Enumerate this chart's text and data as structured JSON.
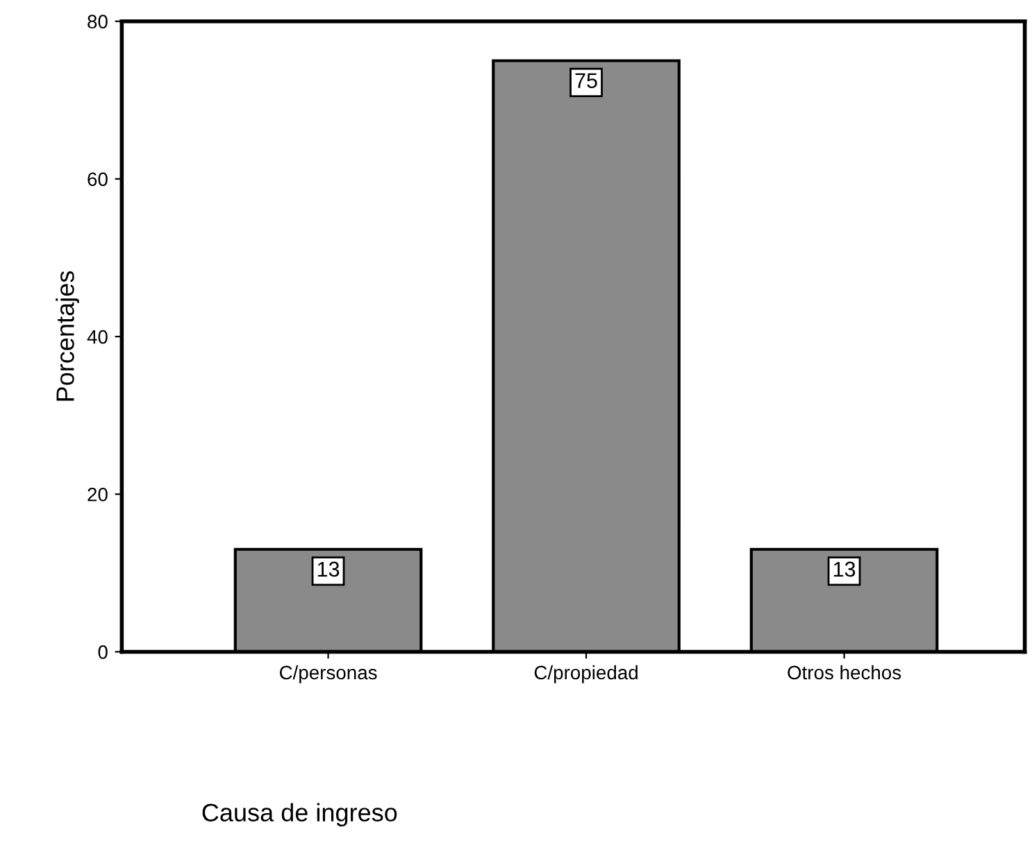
{
  "chart_data": {
    "type": "bar",
    "xlabel": "Causa de ingreso",
    "ylabel": "Porcentajes",
    "categories": [
      "C/personas",
      "C/propiedad",
      "Otros hechos"
    ],
    "values": [
      13,
      75,
      13
    ],
    "color": "#8a8a8a",
    "ylim": [
      0,
      80
    ],
    "yticks": [
      0,
      20,
      40,
      60,
      80
    ],
    "grid": false,
    "legend": false,
    "data_labels": true
  }
}
